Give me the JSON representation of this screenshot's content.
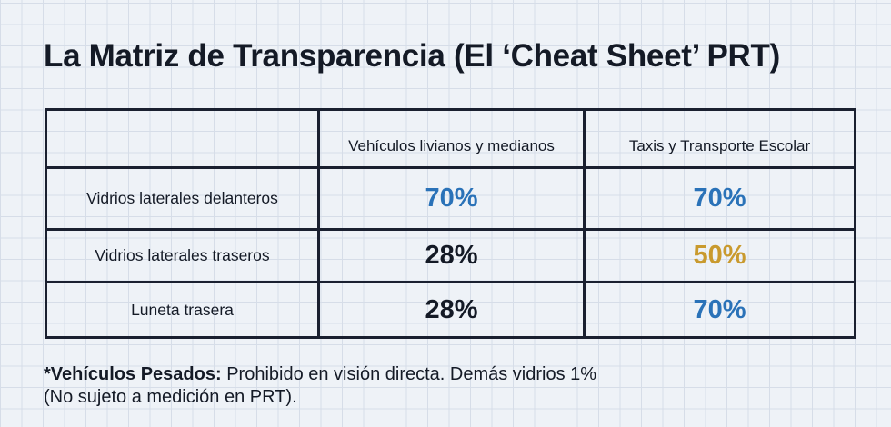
{
  "title": "La Matriz de Transparencia (El ‘Cheat Sheet’ PRT)",
  "columns": [
    "",
    "Vehículos livianos y medianos",
    "Taxis y Transporte Escolar"
  ],
  "rows": [
    {
      "label": "Vidrios laterales delanteros",
      "values": [
        "70%",
        "70%"
      ],
      "colors": [
        "#2a72b8",
        "#2a72b8"
      ]
    },
    {
      "label": "Vidrios laterales traseros",
      "values": [
        "28%",
        "50%"
      ],
      "colors": [
        "#141a26",
        "#c99a2e"
      ]
    },
    {
      "label": "Luneta trasera",
      "values": [
        "28%",
        "70%"
      ],
      "colors": [
        "#141a26",
        "#2a72b8"
      ]
    }
  ],
  "note": {
    "bold": "*Vehículos Pesados:",
    "line1": " Prohibido en visión directa. Demás vidrios 1%",
    "line2": "(No sujeto a medición en PRT)."
  }
}
